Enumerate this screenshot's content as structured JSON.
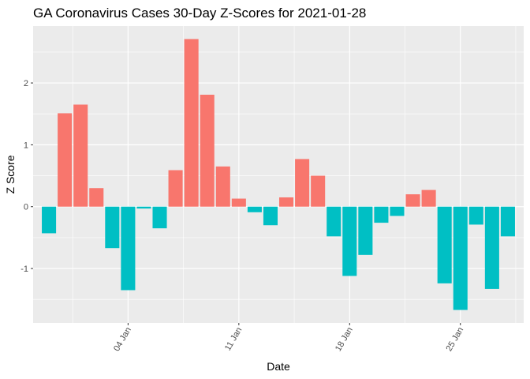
{
  "chart_data": {
    "type": "bar",
    "title": "GA Coronavirus Cases 30-Day Z-Scores for 2021-01-28",
    "xlabel": "Date",
    "ylabel": "Z Score",
    "x": [
      "2020-12-30",
      "2020-12-31",
      "2021-01-01",
      "2021-01-02",
      "2021-01-03",
      "2021-01-04",
      "2021-01-05",
      "2021-01-06",
      "2021-01-07",
      "2021-01-08",
      "2021-01-09",
      "2021-01-10",
      "2021-01-11",
      "2021-01-12",
      "2021-01-13",
      "2021-01-14",
      "2021-01-15",
      "2021-01-16",
      "2021-01-17",
      "2021-01-18",
      "2021-01-19",
      "2021-01-20",
      "2021-01-21",
      "2021-01-22",
      "2021-01-23",
      "2021-01-24",
      "2021-01-25",
      "2021-01-26",
      "2021-01-27",
      "2021-01-28"
    ],
    "values": [
      -0.43,
      1.51,
      1.65,
      0.3,
      -0.67,
      -1.35,
      -0.03,
      -0.35,
      0.59,
      2.71,
      1.81,
      0.65,
      0.13,
      -0.09,
      -0.3,
      0.15,
      0.77,
      0.5,
      -0.48,
      -1.12,
      -0.78,
      -0.26,
      -0.15,
      0.2,
      0.27,
      -1.24,
      -1.67,
      -0.29,
      -1.33,
      -0.48
    ],
    "positive_color": "#F8766D",
    "negative_color": "#00BFC4",
    "xtick_labels": [
      {
        "date": "2021-01-04",
        "label": "04 Jan"
      },
      {
        "date": "2021-01-11",
        "label": "11 Jan"
      },
      {
        "date": "2021-01-18",
        "label": "18 Jan"
      },
      {
        "date": "2021-01-25",
        "label": "25 Jan"
      }
    ],
    "yticks": [
      -1,
      0,
      1,
      2
    ],
    "ylim": [
      -1.88,
      2.92
    ],
    "grid": true,
    "panel_background": "#EBEBEB",
    "legend": "none"
  }
}
